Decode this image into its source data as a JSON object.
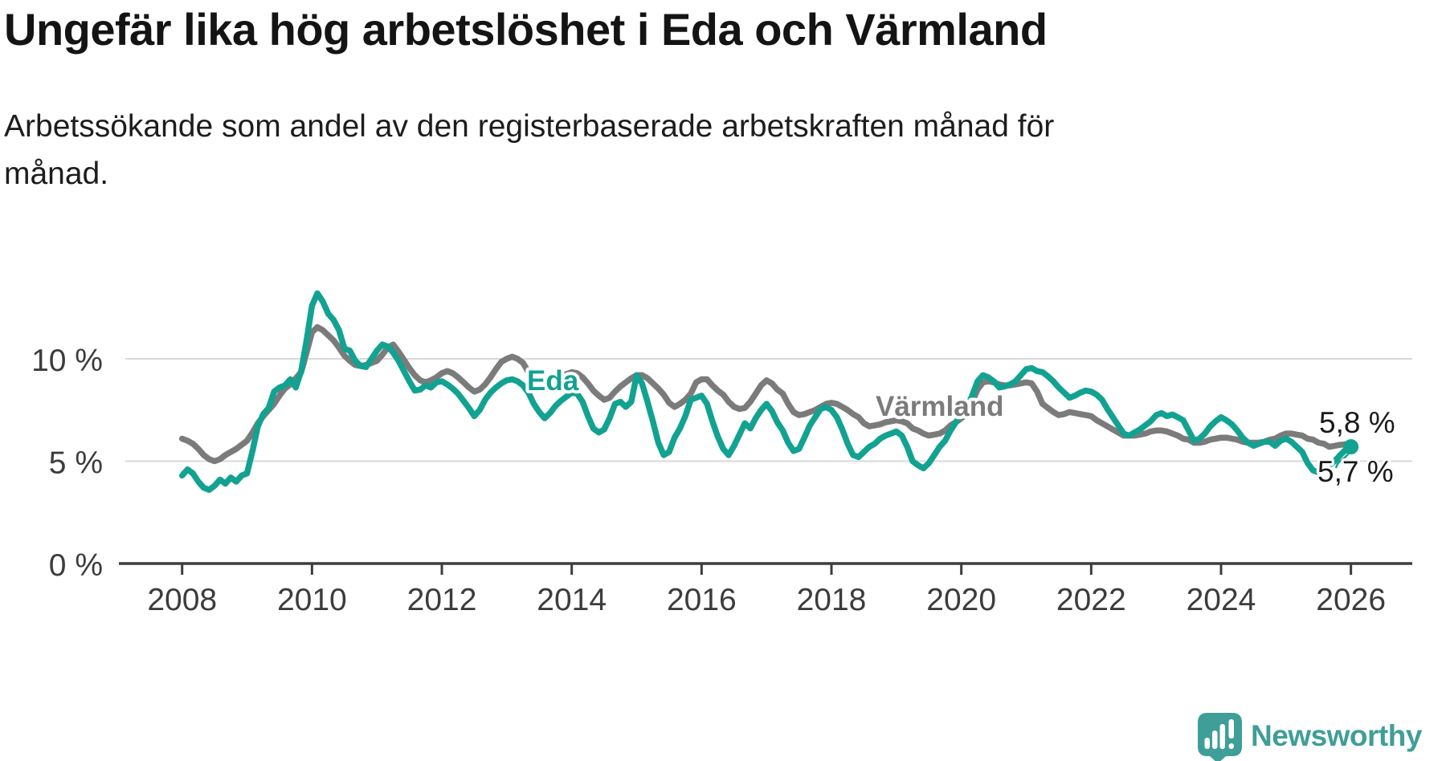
{
  "header": {
    "title": "Ungefär lika hög arbetslöshet i Eda och Värmland",
    "subtitle": "Arbetssökande som andel av den registerbaserade arbetskraften månad för\nmånad."
  },
  "footer": {
    "brand": "Newsworthy"
  },
  "colors": {
    "eda": "#12a291",
    "varmland": "#7b7b7b",
    "axis": "#3d3d3d",
    "grid": "#d9d9d9",
    "text": "#1a1a1a",
    "brand": "#3f9e97"
  },
  "chart_data": {
    "type": "line",
    "unit": "%",
    "x_start_year": 2008,
    "x_step_months": 1,
    "x_end": "2026-01",
    "ylim": [
      0,
      13.5
    ],
    "grid": "horizontal",
    "legend_position": "inline-labels",
    "yticks": [
      {
        "value": 0,
        "label": "0 %"
      },
      {
        "value": 5,
        "label": "5 %"
      },
      {
        "value": 10,
        "label": "10 %"
      }
    ],
    "xticks": [
      {
        "value": 2008,
        "label": "2008"
      },
      {
        "value": 2010,
        "label": "2010"
      },
      {
        "value": 2012,
        "label": "2012"
      },
      {
        "value": 2014,
        "label": "2014"
      },
      {
        "value": 2016,
        "label": "2016"
      },
      {
        "value": 2018,
        "label": "2018"
      },
      {
        "value": 2020,
        "label": "2020"
      },
      {
        "value": 2022,
        "label": "2022"
      },
      {
        "value": 2024,
        "label": "2024"
      },
      {
        "value": 2026,
        "label": "2026"
      }
    ],
    "series": [
      {
        "name": "Eda",
        "color": "#12a291",
        "end_label": "5,7 %",
        "end_dot": true,
        "values": [
          4.3,
          4.6,
          4.4,
          4.0,
          3.7,
          3.6,
          3.8,
          4.1,
          3.9,
          4.2,
          4.0,
          4.3,
          4.4,
          5.5,
          6.7,
          7.3,
          7.6,
          8.4,
          8.6,
          8.7,
          9.0,
          8.6,
          9.4,
          10.9,
          12.6,
          13.2,
          12.8,
          12.2,
          11.9,
          11.4,
          10.5,
          10.4,
          9.9,
          9.65,
          9.6,
          10.0,
          10.4,
          10.7,
          10.6,
          10.3,
          9.9,
          9.4,
          8.9,
          8.45,
          8.5,
          8.7,
          8.6,
          8.85,
          8.9,
          8.75,
          8.55,
          8.3,
          7.95,
          7.6,
          7.2,
          7.5,
          8.0,
          8.35,
          8.6,
          8.8,
          8.95,
          9.0,
          8.9,
          8.7,
          8.35,
          7.8,
          7.4,
          7.1,
          7.35,
          7.7,
          7.95,
          8.15,
          8.35,
          8.3,
          7.9,
          7.2,
          6.6,
          6.4,
          6.55,
          7.1,
          7.8,
          7.9,
          7.65,
          7.9,
          9.2,
          8.8,
          7.9,
          6.95,
          5.9,
          5.3,
          5.45,
          6.15,
          6.6,
          7.2,
          8.0,
          8.1,
          8.2,
          7.8,
          6.95,
          6.2,
          5.6,
          5.3,
          5.75,
          6.3,
          6.85,
          6.6,
          7.1,
          7.5,
          7.8,
          7.45,
          6.9,
          6.5,
          5.9,
          5.5,
          5.6,
          6.15,
          6.75,
          7.15,
          7.55,
          7.65,
          7.5,
          7.15,
          6.55,
          5.85,
          5.3,
          5.2,
          5.45,
          5.7,
          5.85,
          6.1,
          6.25,
          6.35,
          6.45,
          6.25,
          5.7,
          5.0,
          4.8,
          4.65,
          4.9,
          5.3,
          5.7,
          6.0,
          6.5,
          6.9,
          7.3,
          7.6,
          8.2,
          8.9,
          9.2,
          9.1,
          8.9,
          8.6,
          8.65,
          8.75,
          8.9,
          9.2,
          9.5,
          9.55,
          9.4,
          9.35,
          9.15,
          8.9,
          8.6,
          8.35,
          8.1,
          8.2,
          8.35,
          8.45,
          8.4,
          8.25,
          8.0,
          7.55,
          7.15,
          6.75,
          6.35,
          6.25,
          6.4,
          6.55,
          6.75,
          6.95,
          7.25,
          7.35,
          7.2,
          7.28,
          7.15,
          7.0,
          6.5,
          6.0,
          6.1,
          6.35,
          6.7,
          6.95,
          7.15,
          7.0,
          6.8,
          6.5,
          6.15,
          5.9,
          5.75,
          5.85,
          5.95,
          5.95,
          5.75,
          6.0,
          6.1,
          5.95,
          5.7,
          5.45,
          4.9,
          4.55,
          4.45,
          4.6,
          4.8,
          5.0,
          5.3,
          5.55,
          5.7
        ]
      },
      {
        "name": "Värmland",
        "color": "#7b7b7b",
        "end_label": "5,8 %",
        "end_dot": false,
        "values": [
          6.1,
          6.0,
          5.85,
          5.6,
          5.3,
          5.1,
          5.0,
          5.1,
          5.3,
          5.45,
          5.6,
          5.8,
          6.0,
          6.4,
          6.85,
          7.2,
          7.5,
          7.8,
          8.2,
          8.55,
          8.75,
          9.05,
          9.35,
          10.3,
          11.3,
          11.55,
          11.4,
          11.15,
          10.9,
          10.55,
          10.15,
          9.9,
          9.7,
          9.65,
          9.7,
          9.8,
          9.9,
          10.2,
          10.55,
          10.7,
          10.35,
          9.95,
          9.55,
          9.2,
          8.95,
          8.85,
          8.95,
          9.1,
          9.3,
          9.4,
          9.3,
          9.1,
          8.85,
          8.6,
          8.4,
          8.5,
          8.75,
          9.1,
          9.5,
          9.85,
          10.0,
          10.1,
          10.0,
          9.8,
          9.35,
          8.95,
          8.7,
          8.6,
          8.7,
          8.9,
          9.1,
          9.25,
          9.35,
          9.3,
          9.1,
          8.8,
          8.45,
          8.2,
          8.0,
          8.1,
          8.4,
          8.65,
          8.85,
          9.05,
          9.2,
          9.2,
          9.05,
          8.8,
          8.55,
          8.25,
          7.85,
          7.65,
          7.8,
          8.0,
          8.3,
          8.85,
          9.0,
          9.0,
          8.7,
          8.45,
          8.25,
          7.9,
          7.65,
          7.55,
          7.6,
          7.9,
          8.3,
          8.7,
          8.95,
          8.8,
          8.5,
          8.3,
          7.8,
          7.4,
          7.25,
          7.3,
          7.4,
          7.5,
          7.65,
          7.8,
          7.85,
          7.8,
          7.65,
          7.5,
          7.3,
          7.15,
          6.85,
          6.7,
          6.75,
          6.8,
          6.9,
          6.95,
          7.0,
          6.95,
          6.85,
          6.6,
          6.5,
          6.35,
          6.25,
          6.3,
          6.35,
          6.5,
          6.75,
          6.9,
          7.1,
          7.3,
          7.9,
          8.5,
          8.85,
          8.9,
          8.85,
          8.75,
          8.7,
          8.7,
          8.75,
          8.8,
          8.85,
          8.8,
          8.4,
          7.8,
          7.6,
          7.4,
          7.25,
          7.3,
          7.4,
          7.35,
          7.3,
          7.25,
          7.2,
          7.0,
          6.85,
          6.7,
          6.55,
          6.4,
          6.25,
          6.25,
          6.25,
          6.3,
          6.35,
          6.45,
          6.5,
          6.5,
          6.45,
          6.35,
          6.25,
          6.1,
          6.05,
          5.9,
          5.9,
          5.95,
          6.05,
          6.1,
          6.15,
          6.15,
          6.1,
          6.05,
          5.95,
          5.9,
          5.9,
          5.9,
          5.95,
          6.05,
          6.1,
          6.25,
          6.35,
          6.35,
          6.3,
          6.25,
          6.1,
          6.05,
          5.9,
          5.85,
          5.7,
          5.75,
          5.8,
          5.82,
          5.8
        ]
      }
    ]
  }
}
